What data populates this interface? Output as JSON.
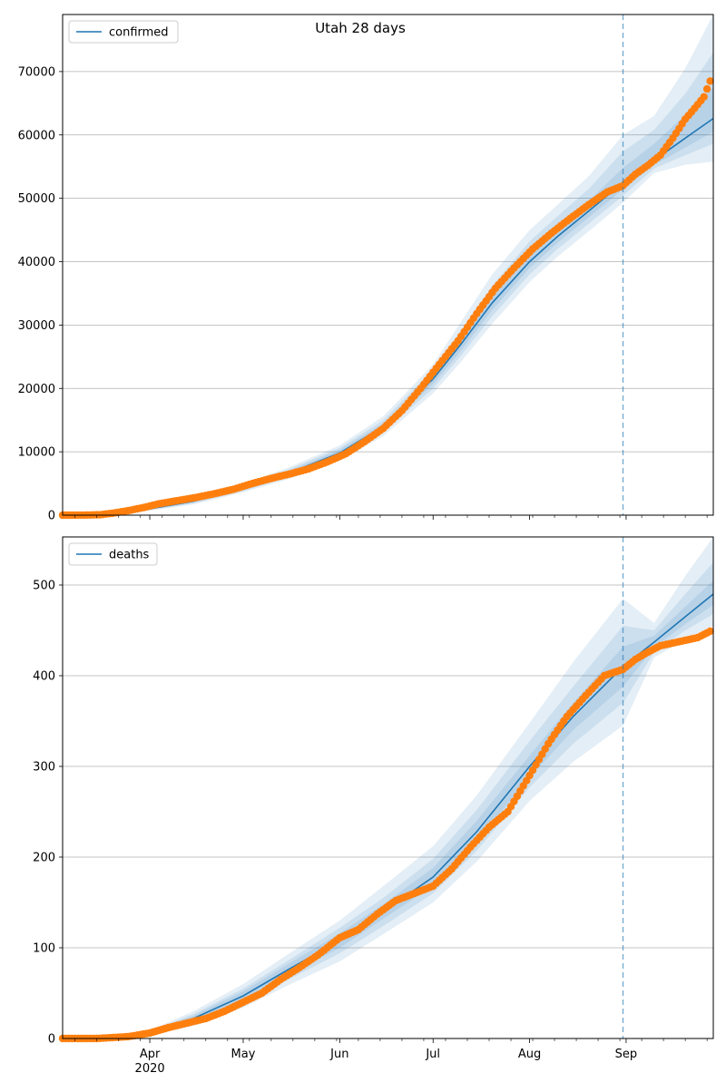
{
  "figure": {
    "suptitle": "Utah 28 days"
  },
  "colors": {
    "line": "#1f77b4",
    "observed": "#ff7f0e",
    "band": "#1f77b4",
    "grid": "#b0b0b0",
    "cutoff": "#1f77b4"
  },
  "x_axis": {
    "tick_labels": [
      {
        "date": "2020-04-01",
        "label": "Apr",
        "sublabel": "2020"
      },
      {
        "date": "2020-05-01",
        "label": "May",
        "sublabel": ""
      },
      {
        "date": "2020-06-01",
        "label": "Jun",
        "sublabel": ""
      },
      {
        "date": "2020-07-01",
        "label": "Jul",
        "sublabel": ""
      },
      {
        "date": "2020-08-01",
        "label": "Aug",
        "sublabel": ""
      },
      {
        "date": "2020-09-01",
        "label": "Sep",
        "sublabel": ""
      }
    ],
    "range": [
      "2020-03-04",
      "2020-09-29"
    ],
    "cutoff_date": "2020-08-31"
  },
  "chart_data": [
    {
      "type": "line",
      "legend": "confirmed",
      "legend_position": "top-left",
      "grid": "y",
      "ylim": [
        0,
        79000
      ],
      "yticks": [
        0,
        10000,
        20000,
        30000,
        40000,
        50000,
        60000,
        70000
      ],
      "model_line": {
        "x": [
          "2020-03-04",
          "2020-03-20",
          "2020-04-01",
          "2020-04-15",
          "2020-05-01",
          "2020-05-15",
          "2020-06-01",
          "2020-06-15",
          "2020-07-01",
          "2020-07-10",
          "2020-07-20",
          "2020-08-01",
          "2020-08-10",
          "2020-08-20",
          "2020-08-31",
          "2020-09-10",
          "2020-09-20",
          "2020-09-29"
        ],
        "y": [
          0,
          150,
          1000,
          2200,
          4300,
          6500,
          9800,
          14000,
          21500,
          27000,
          33500,
          40000,
          44000,
          48000,
          52500,
          56000,
          59500,
          62600
        ]
      },
      "bands": [
        {
          "lo": [
            0,
            100,
            700,
            1700,
            3600,
            5600,
            8600,
            12500,
            19200,
            24200,
            30200,
            36800,
            40800,
            44800,
            49300,
            54000,
            55300,
            55800
          ],
          "hi": [
            0,
            200,
            1300,
            2700,
            5000,
            7400,
            11000,
            15600,
            23800,
            30500,
            38000,
            45000,
            49000,
            53500,
            60000,
            63000,
            70500,
            79000
          ]
        },
        {
          "lo": [
            0,
            110,
            800,
            1850,
            3800,
            5900,
            9000,
            13100,
            20000,
            25200,
            31400,
            38000,
            42000,
            46000,
            50400,
            54700,
            56800,
            58600
          ],
          "hi": [
            0,
            180,
            1200,
            2550,
            4800,
            7100,
            10600,
            15000,
            23000,
            29200,
            36200,
            43200,
            47200,
            51500,
            57400,
            60800,
            66500,
            73000
          ]
        },
        {
          "lo": [
            0,
            125,
            880,
            2000,
            4000,
            6150,
            9300,
            13500,
            20700,
            26000,
            32400,
            39000,
            43000,
            47000,
            51400,
            55300,
            58000,
            60500
          ],
          "hi": [
            0,
            165,
            1100,
            2400,
            4600,
            6850,
            10300,
            14500,
            22300,
            28000,
            34800,
            41600,
            45600,
            49600,
            54800,
            58600,
            63200,
            67500
          ]
        }
      ],
      "observed": {
        "x": [
          "2020-03-04",
          "2020-03-10",
          "2020-03-16",
          "2020-03-20",
          "2020-03-25",
          "2020-03-30",
          "2020-04-04",
          "2020-04-10",
          "2020-04-16",
          "2020-04-22",
          "2020-04-28",
          "2020-05-04",
          "2020-05-10",
          "2020-05-16",
          "2020-05-22",
          "2020-05-28",
          "2020-06-03",
          "2020-06-09",
          "2020-06-15",
          "2020-06-21",
          "2020-06-27",
          "2020-07-03",
          "2020-07-09",
          "2020-07-15",
          "2020-07-21",
          "2020-07-27",
          "2020-08-02",
          "2020-08-08",
          "2020-08-14",
          "2020-08-20",
          "2020-08-26",
          "2020-08-31",
          "2020-09-04",
          "2020-09-08",
          "2020-09-12",
          "2020-09-16",
          "2020-09-20",
          "2020-09-23",
          "2020-09-26",
          "2020-09-28"
        ],
        "y": [
          0,
          10,
          60,
          300,
          700,
          1200,
          1800,
          2300,
          2800,
          3400,
          4100,
          5000,
          5800,
          6500,
          7300,
          8400,
          9700,
          11600,
          13700,
          16500,
          20000,
          23800,
          27500,
          31800,
          35800,
          39000,
          42000,
          44500,
          46800,
          49000,
          51000,
          52000,
          53800,
          55200,
          56800,
          59500,
          62500,
          64200,
          66000,
          68500
        ]
      }
    },
    {
      "type": "line",
      "legend": "deaths",
      "legend_position": "top-left",
      "grid": "y",
      "ylim": [
        0,
        553
      ],
      "yticks": [
        0,
        100,
        200,
        300,
        400,
        500
      ],
      "model_line": {
        "x": [
          "2020-03-04",
          "2020-03-20",
          "2020-04-01",
          "2020-04-15",
          "2020-05-01",
          "2020-05-15",
          "2020-06-01",
          "2020-06-15",
          "2020-07-01",
          "2020-07-15",
          "2020-08-01",
          "2020-08-15",
          "2020-08-31",
          "2020-09-10",
          "2020-09-20",
          "2020-09-29"
        ],
        "y": [
          0,
          1,
          6,
          22,
          47,
          75,
          108,
          140,
          178,
          228,
          300,
          355,
          410,
          437,
          465,
          490
        ]
      },
      "bands": [
        {
          "lo": [
            0,
            0,
            3,
            14,
            34,
            58,
            85,
            115,
            150,
            195,
            262,
            305,
            345,
            420,
            440,
            455
          ],
          "hi": [
            0,
            2,
            9,
            30,
            60,
            92,
            130,
            168,
            212,
            268,
            348,
            415,
            485,
            458,
            510,
            553
          ]
        },
        {
          "lo": [
            0,
            0,
            4,
            17,
            38,
            64,
            94,
            124,
            160,
            207,
            277,
            325,
            370,
            426,
            450,
            468
          ],
          "hi": [
            0,
            2,
            8,
            27,
            55,
            85,
            122,
            155,
            198,
            252,
            328,
            388,
            455,
            450,
            490,
            525
          ]
        },
        {
          "lo": [
            0,
            1,
            5,
            19,
            42,
            69,
            100,
            132,
            168,
            217,
            288,
            340,
            388,
            431,
            457,
            478
          ],
          "hi": [
            0,
            1,
            7,
            25,
            52,
            81,
            116,
            148,
            188,
            240,
            312,
            370,
            432,
            444,
            476,
            505
          ]
        }
      ],
      "observed": {
        "x": [
          "2020-03-04",
          "2020-03-15",
          "2020-03-25",
          "2020-04-01",
          "2020-04-07",
          "2020-04-13",
          "2020-04-19",
          "2020-04-25",
          "2020-05-01",
          "2020-05-07",
          "2020-05-13",
          "2020-05-19",
          "2020-05-25",
          "2020-06-01",
          "2020-06-07",
          "2020-06-13",
          "2020-06-19",
          "2020-06-25",
          "2020-07-01",
          "2020-07-07",
          "2020-07-13",
          "2020-07-19",
          "2020-07-25",
          "2020-08-01",
          "2020-08-07",
          "2020-08-13",
          "2020-08-19",
          "2020-08-25",
          "2020-08-31",
          "2020-09-04",
          "2020-09-08",
          "2020-09-12",
          "2020-09-16",
          "2020-09-20",
          "2020-09-24",
          "2020-09-28"
        ],
        "y": [
          0,
          0,
          2,
          6,
          12,
          17,
          22,
          30,
          40,
          50,
          65,
          78,
          92,
          111,
          120,
          137,
          152,
          160,
          168,
          187,
          211,
          233,
          250,
          290,
          325,
          355,
          378,
          400,
          407,
          418,
          426,
          433,
          436,
          439,
          442,
          449
        ]
      }
    }
  ]
}
